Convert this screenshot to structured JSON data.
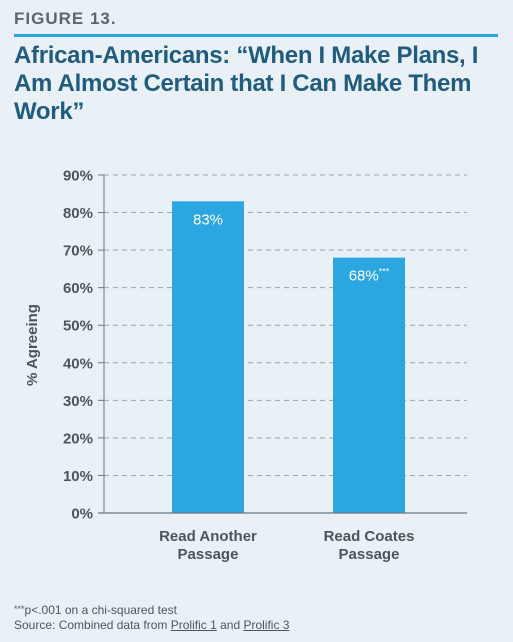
{
  "figure_label": "FIGURE 13.",
  "title": "African-Americans: “When I Make Plans, I Am Almost Certain that I Can Make Them Work”",
  "footnote": {
    "significance_stars": "***",
    "significance_text": "p<.001 on a chi-squared test",
    "source_prefix": "Source: Combined data from ",
    "source_link_1": "Prolific 1",
    "source_joiner": " and ",
    "source_link_2": "Prolific 3"
  },
  "colors": {
    "bar": "#2aa7e1",
    "title": "#1f5c7e",
    "rule": "#2aa7e1",
    "axis_text": "#4a5560",
    "grid": "#9aa5ad"
  },
  "chart_data": {
    "type": "bar",
    "categories": [
      "Read Another Passage",
      "Read Coates Passage"
    ],
    "category_lines": [
      [
        "Read Another",
        "Passage"
      ],
      [
        "Read Coates",
        "Passage"
      ]
    ],
    "values": [
      83,
      68
    ],
    "value_labels": [
      "83%",
      "68%"
    ],
    "value_label_suffix": [
      "",
      "***"
    ],
    "ylabel": "% Agreeing",
    "ylim": [
      0,
      90
    ],
    "yticks": [
      0,
      10,
      20,
      30,
      40,
      50,
      60,
      70,
      80,
      90
    ],
    "ytick_labels": [
      "0%",
      "10%",
      "20%",
      "30%",
      "40%",
      "50%",
      "60%",
      "70%",
      "80%",
      "90%"
    ],
    "grid": true,
    "grid_style": "dashed"
  }
}
